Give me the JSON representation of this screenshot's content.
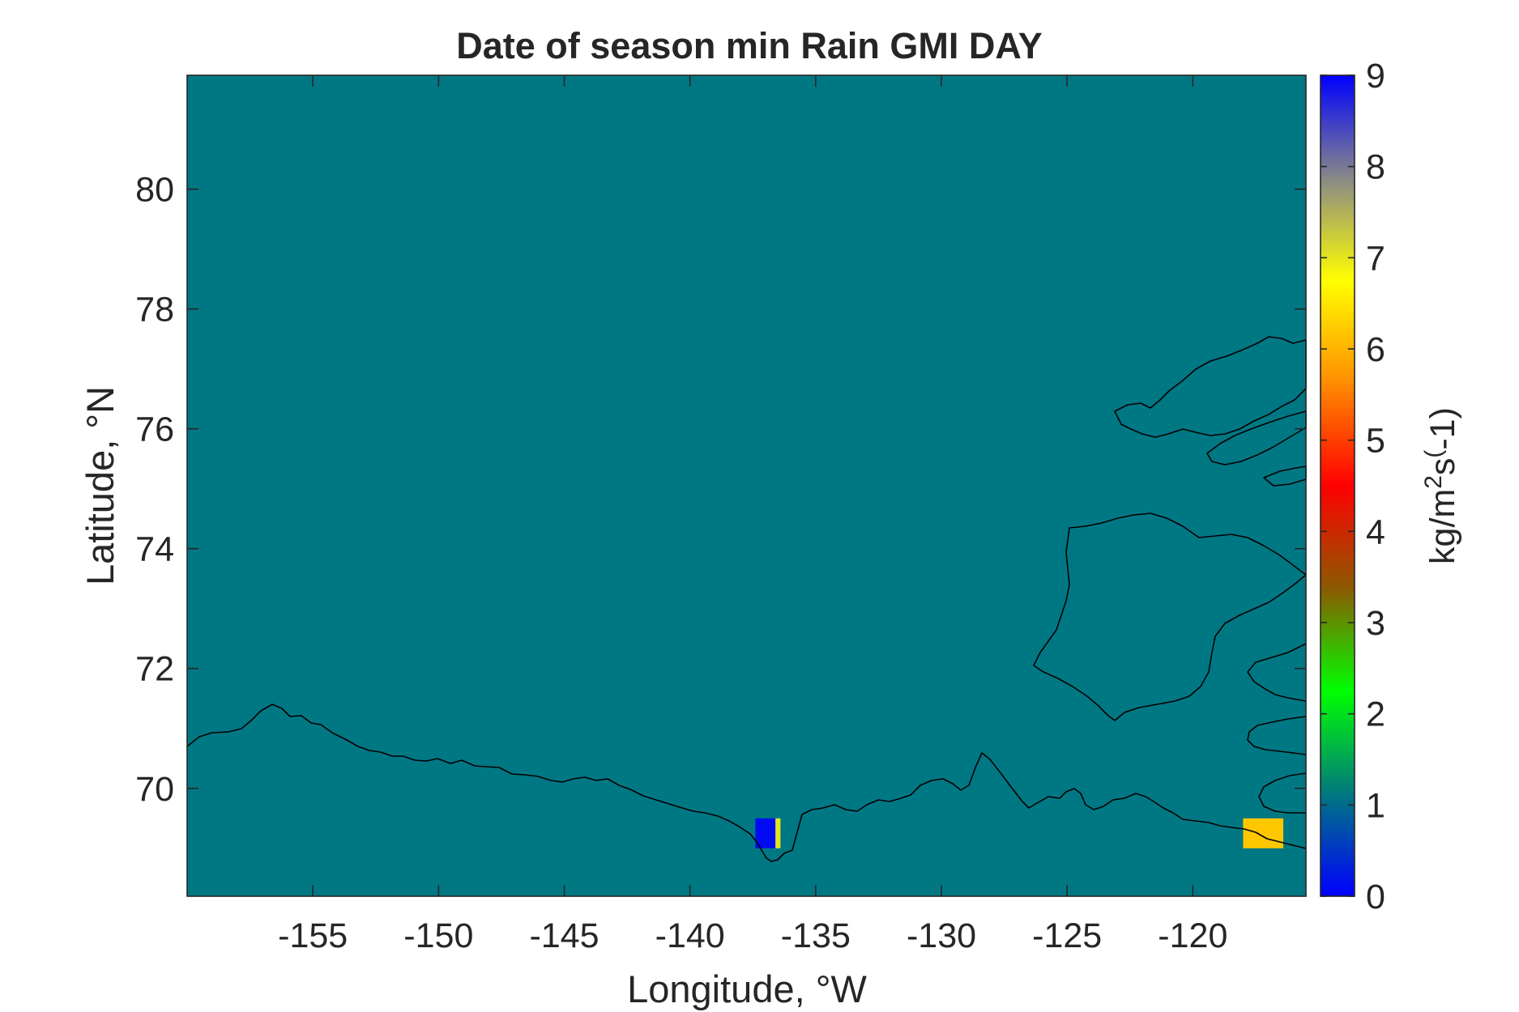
{
  "chart_data": {
    "type": "heatmap",
    "title": "Date of season min Rain GMI DAY",
    "xlabel": "Longitude, °W",
    "ylabel": "Latitude, °N",
    "xlim": [
      -160,
      -115.5
    ],
    "ylim": [
      68.2,
      81.9
    ],
    "xticks": [
      -155,
      -150,
      -145,
      -140,
      -135,
      -130,
      -125,
      -120
    ],
    "xtick_labels": [
      "-155",
      "-150",
      "-145",
      "-140",
      "-135",
      "-130",
      "-125",
      "-120"
    ],
    "yticks": [
      70,
      72,
      74,
      76,
      78,
      80
    ],
    "ytick_labels": [
      "70",
      "72",
      "74",
      "76",
      "78",
      "80"
    ],
    "grid": false,
    "background_value": 1,
    "cells": [
      {
        "lon0": -137.4,
        "lon1": -136.6,
        "lat0": 69.0,
        "lat1": 69.5,
        "value": 0.1
      },
      {
        "lon0": -136.6,
        "lon1": -136.4,
        "lat0": 69.0,
        "lat1": 69.5,
        "value": 7.0
      },
      {
        "lon0": -118.0,
        "lon1": -116.4,
        "lat0": 69.0,
        "lat1": 69.5,
        "value": 6.2
      }
    ],
    "colorbar": {
      "label_base": "kg/m",
      "label_sup1": "2",
      "label_mid": "s",
      "label_sup2": "(",
      "label_end": "-1)",
      "range": [
        0,
        9
      ],
      "ticks": [
        0,
        1,
        2,
        3,
        4,
        5,
        6,
        7,
        8,
        9
      ],
      "tick_labels": [
        "0",
        "1",
        "2",
        "3",
        "4",
        "5",
        "6",
        "7",
        "8",
        "9"
      ],
      "stops": [
        "#0000ff",
        "#00787f",
        "#00ff00",
        "#8c5a00",
        "#ff0000",
        "#ff8c00",
        "#ffff00",
        "#888888",
        "#0000ff"
      ]
    },
    "colors": {
      "ocean": "#007884",
      "coastline": "#000000"
    }
  }
}
